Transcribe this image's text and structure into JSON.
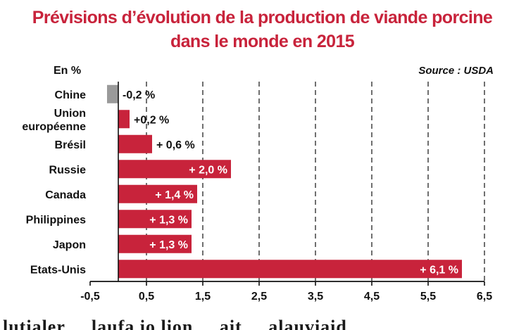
{
  "header": {
    "title_line1": "Prévisions d’évolution de la production de viande porcine",
    "title_line2": "dans le monde en 2015",
    "unit": "En %",
    "source": "Source : USDA"
  },
  "bottom_text": "lutialer ... laufa io lion ... ait ... alauviaid...",
  "chart_data": {
    "type": "bar",
    "orientation": "horizontal",
    "title": "Prévisions d’évolution de la production de viande porcine dans le monde en 2015",
    "categories": [
      "Chine",
      "Union européenne",
      "Brésil",
      "Russie",
      "Canada",
      "Philippines",
      "Japon",
      "Etats-Unis"
    ],
    "category_lines": [
      [
        "Chine"
      ],
      [
        "Union",
        "européenne"
      ],
      [
        "Brésil"
      ],
      [
        "Russie"
      ],
      [
        "Canada"
      ],
      [
        "Philippines"
      ],
      [
        "Japon"
      ],
      [
        "Etats-Unis"
      ]
    ],
    "values": [
      -0.2,
      0.2,
      0.6,
      2.0,
      1.4,
      1.3,
      1.3,
      6.1
    ],
    "labels": [
      "-0,2 %",
      "+0,2 %",
      "+ 0,6 %",
      "+ 2,0 %",
      "+ 1,4 %",
      "+ 1,3 %",
      "+ 1,3 %",
      "+ 6,1 %"
    ],
    "label_inside": [
      false,
      false,
      false,
      true,
      true,
      true,
      true,
      true
    ],
    "xlim": [
      -0.5,
      6.5
    ],
    "xticks": [
      -0.5,
      0.5,
      1.5,
      2.5,
      3.5,
      4.5,
      5.5,
      6.5
    ],
    "xtick_labels": [
      "-0,5",
      "0,5",
      "1,5",
      "2,5",
      "3,5",
      "4,5",
      "5,5",
      "6,5"
    ],
    "grid": "vertical-dashed",
    "colors": {
      "positive": "#c8233b",
      "negative": "#9a9a9a",
      "text_inside": "#ffffff",
      "grid": "#222222"
    }
  }
}
